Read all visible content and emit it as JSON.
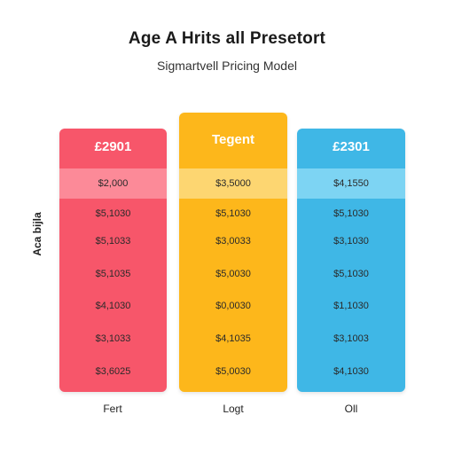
{
  "header": {
    "title": "Age A Hrits all Presetort",
    "subtitle": "Sigmartvell Pricing Model"
  },
  "side_label": "Aca bijla",
  "colors": {
    "red": "#F7566A",
    "red_band": "#FC8A98",
    "yellow": "#FDB71B",
    "yellow_band": "#FDD671",
    "blue": "#3FB7E6",
    "blue_band": "#7DD4F3"
  },
  "columns": [
    {
      "header": "£2901",
      "rows": [
        "$2,000",
        "$5,1030",
        "$5,1033",
        "$5,1035",
        "$4,1030",
        "$3,1033",
        "$3,6025"
      ],
      "footer": "Fert"
    },
    {
      "header": "Tegent",
      "rows": [
        "$3,5000",
        "$5,1030",
        "$3,0033",
        "$5,0030",
        "$0,0030",
        "$4,1035",
        "$5,0030"
      ],
      "footer": "Logt"
    },
    {
      "header": "£2301",
      "rows": [
        "$4,1550",
        "$5,1030",
        "$3,1030",
        "$5,1030",
        "$1,1030",
        "$3,1003",
        "$4,1030"
      ],
      "footer": "Oll"
    }
  ]
}
